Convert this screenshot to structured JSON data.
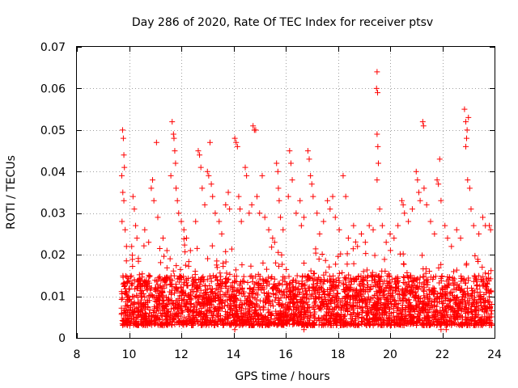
{
  "chart_data": {
    "type": "scatter",
    "title": "Day 286 of 2020, Rate Of TEC Index for receiver ptsv",
    "xlabel": "GPS time / hours",
    "ylabel": "ROTI / TECUs",
    "xlim": [
      8,
      24
    ],
    "ylim": [
      0,
      0.07
    ],
    "xticks": [
      8,
      10,
      12,
      14,
      16,
      18,
      20,
      22,
      24
    ],
    "xtick_labels": [
      "8",
      "10",
      "12",
      "14",
      "16",
      "18",
      "20",
      "22",
      "24"
    ],
    "yticks": [
      0,
      0.01,
      0.02,
      0.03,
      0.04,
      0.05,
      0.06,
      0.07
    ],
    "ytick_labels": [
      "0",
      "0.01",
      "0.02",
      "0.03",
      "0.04",
      "0.05",
      "0.06",
      "0.07"
    ],
    "grid": true,
    "marker": "+",
    "marker_color": "#ff0000",
    "series": [
      {
        "name": "ROTI",
        "x_range": [
          9.7,
          23.9
        ],
        "typical_range": [
          0.003,
          0.015
        ],
        "points": [
          [
            9.75,
            0.05
          ],
          [
            9.78,
            0.048
          ],
          [
            9.8,
            0.044
          ],
          [
            9.82,
            0.041
          ],
          [
            9.72,
            0.039
          ],
          [
            9.76,
            0.035
          ],
          [
            9.8,
            0.033
          ],
          [
            9.73,
            0.028
          ],
          [
            9.85,
            0.026
          ],
          [
            9.9,
            0.022
          ],
          [
            10.15,
            0.034
          ],
          [
            10.2,
            0.031
          ],
          [
            10.25,
            0.027
          ],
          [
            10.3,
            0.024
          ],
          [
            10.1,
            0.022
          ],
          [
            10.6,
            0.026
          ],
          [
            10.75,
            0.023
          ],
          [
            10.85,
            0.036
          ],
          [
            10.9,
            0.038
          ],
          [
            10.95,
            0.033
          ],
          [
            11.05,
            0.047
          ],
          [
            11.1,
            0.029
          ],
          [
            11.3,
            0.024
          ],
          [
            11.45,
            0.021
          ],
          [
            11.65,
            0.052
          ],
          [
            11.7,
            0.049
          ],
          [
            11.72,
            0.048
          ],
          [
            11.75,
            0.045
          ],
          [
            11.78,
            0.042
          ],
          [
            11.6,
            0.039
          ],
          [
            11.8,
            0.036
          ],
          [
            11.85,
            0.033
          ],
          [
            11.9,
            0.03
          ],
          [
            12.0,
            0.028
          ],
          [
            12.1,
            0.026
          ],
          [
            12.2,
            0.024
          ],
          [
            12.35,
            0.021
          ],
          [
            12.55,
            0.028
          ],
          [
            12.65,
            0.045
          ],
          [
            12.7,
            0.044
          ],
          [
            12.75,
            0.041
          ],
          [
            12.8,
            0.036
          ],
          [
            12.9,
            0.032
          ],
          [
            13.0,
            0.04
          ],
          [
            13.05,
            0.039
          ],
          [
            13.1,
            0.047
          ],
          [
            13.15,
            0.037
          ],
          [
            13.2,
            0.034
          ],
          [
            13.3,
            0.03
          ],
          [
            13.45,
            0.028
          ],
          [
            13.55,
            0.025
          ],
          [
            13.7,
            0.032
          ],
          [
            13.8,
            0.035
          ],
          [
            13.85,
            0.031
          ],
          [
            14.05,
            0.048
          ],
          [
            14.1,
            0.047
          ],
          [
            14.15,
            0.046
          ],
          [
            14.2,
            0.034
          ],
          [
            14.25,
            0.031
          ],
          [
            14.3,
            0.028
          ],
          [
            14.45,
            0.041
          ],
          [
            14.5,
            0.039
          ],
          [
            14.6,
            0.03
          ],
          [
            14.7,
            0.032
          ],
          [
            14.75,
            0.051
          ],
          [
            14.8,
            0.05
          ],
          [
            14.85,
            0.05
          ],
          [
            14.9,
            0.034
          ],
          [
            15.0,
            0.03
          ],
          [
            15.1,
            0.039
          ],
          [
            15.2,
            0.029
          ],
          [
            15.35,
            0.026
          ],
          [
            15.5,
            0.024
          ],
          [
            15.65,
            0.042
          ],
          [
            15.7,
            0.04
          ],
          [
            15.72,
            0.036
          ],
          [
            15.75,
            0.033
          ],
          [
            15.8,
            0.029
          ],
          [
            15.9,
            0.026
          ],
          [
            16.1,
            0.034
          ],
          [
            16.15,
            0.045
          ],
          [
            16.2,
            0.042
          ],
          [
            16.25,
            0.038
          ],
          [
            16.4,
            0.03
          ],
          [
            16.55,
            0.033
          ],
          [
            16.6,
            0.027
          ],
          [
            16.7,
            0.029
          ],
          [
            16.85,
            0.045
          ],
          [
            16.9,
            0.043
          ],
          [
            16.95,
            0.039
          ],
          [
            17.0,
            0.037
          ],
          [
            17.05,
            0.034
          ],
          [
            17.2,
            0.03
          ],
          [
            17.3,
            0.025
          ],
          [
            17.45,
            0.028
          ],
          [
            17.6,
            0.033
          ],
          [
            17.7,
            0.031
          ],
          [
            17.8,
            0.034
          ],
          [
            17.9,
            0.029
          ],
          [
            18.05,
            0.026
          ],
          [
            18.2,
            0.039
          ],
          [
            18.3,
            0.034
          ],
          [
            18.4,
            0.024
          ],
          [
            18.6,
            0.027
          ],
          [
            18.75,
            0.022
          ],
          [
            18.9,
            0.025
          ],
          [
            19.05,
            0.023
          ],
          [
            19.2,
            0.027
          ],
          [
            19.35,
            0.026
          ],
          [
            19.5,
            0.064
          ],
          [
            19.48,
            0.06
          ],
          [
            19.52,
            0.059
          ],
          [
            19.5,
            0.049
          ],
          [
            19.53,
            0.046
          ],
          [
            19.55,
            0.042
          ],
          [
            19.5,
            0.038
          ],
          [
            19.6,
            0.031
          ],
          [
            19.7,
            0.027
          ],
          [
            19.85,
            0.023
          ],
          [
            20.0,
            0.025
          ],
          [
            20.15,
            0.024
          ],
          [
            20.3,
            0.027
          ],
          [
            20.45,
            0.033
          ],
          [
            20.5,
            0.032
          ],
          [
            20.55,
            0.03
          ],
          [
            20.7,
            0.028
          ],
          [
            20.85,
            0.031
          ],
          [
            21.0,
            0.04
          ],
          [
            21.05,
            0.038
          ],
          [
            21.1,
            0.035
          ],
          [
            21.15,
            0.033
          ],
          [
            21.25,
            0.052
          ],
          [
            21.28,
            0.051
          ],
          [
            21.3,
            0.036
          ],
          [
            21.4,
            0.032
          ],
          [
            21.55,
            0.028
          ],
          [
            21.7,
            0.025
          ],
          [
            21.8,
            0.038
          ],
          [
            21.85,
            0.037
          ],
          [
            21.9,
            0.043
          ],
          [
            21.95,
            0.033
          ],
          [
            22.1,
            0.027
          ],
          [
            22.2,
            0.024
          ],
          [
            22.35,
            0.022
          ],
          [
            22.55,
            0.026
          ],
          [
            22.7,
            0.024
          ],
          [
            22.85,
            0.055
          ],
          [
            22.9,
            0.052
          ],
          [
            22.95,
            0.05
          ],
          [
            22.93,
            0.048
          ],
          [
            22.9,
            0.046
          ],
          [
            23.0,
            0.053
          ],
          [
            22.97,
            0.038
          ],
          [
            23.05,
            0.036
          ],
          [
            23.1,
            0.031
          ],
          [
            23.2,
            0.027
          ],
          [
            23.4,
            0.025
          ],
          [
            23.55,
            0.029
          ],
          [
            23.65,
            0.027
          ],
          [
            23.8,
            0.027
          ],
          [
            23.85,
            0.026
          ],
          [
            21.95,
            0.002
          ],
          [
            14.05,
            0.002
          ],
          [
            16.7,
            0.002
          ],
          [
            22.15,
            0.002
          ]
        ]
      }
    ]
  }
}
